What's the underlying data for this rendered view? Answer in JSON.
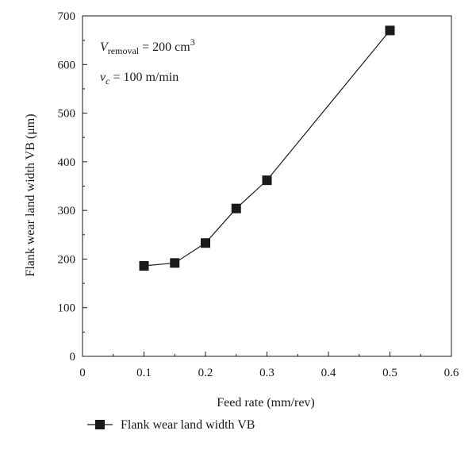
{
  "chart_data": {
    "type": "line",
    "title": "",
    "xlabel": "Feed rate (mm/rev)",
    "ylabel": "Flank wear  land width VB (μm)",
    "xlim": [
      0,
      0.6
    ],
    "ylim": [
      0,
      700
    ],
    "xticks": [
      0,
      0.1,
      0.2,
      0.3,
      0.4,
      0.5,
      0.6
    ],
    "xtick_labels": [
      "0",
      "0.1",
      "0.2",
      "0.3",
      "0.4",
      "0.5",
      "0.6"
    ],
    "yticks": [
      0,
      100,
      200,
      300,
      400,
      500,
      600,
      700
    ],
    "ytick_labels": [
      "0",
      "100",
      "200",
      "300",
      "400",
      "500",
      "600",
      "700"
    ],
    "grid": false,
    "legend_position": "bottom-left, below plot",
    "annotations": [
      {
        "base": "V",
        "subscript": "removal",
        "value": " = 200 cm",
        "superscript": "3"
      },
      {
        "base": "v",
        "subscript": "c",
        "value": " = 100 m/min",
        "superscript": ""
      }
    ],
    "series": [
      {
        "name": "Flank wear land width VB",
        "marker": "square",
        "color": "#1a1a1a",
        "x": [
          0.1,
          0.15,
          0.2,
          0.25,
          0.3,
          0.5
        ],
        "y": [
          186,
          192,
          233,
          304,
          362,
          670
        ]
      }
    ]
  }
}
